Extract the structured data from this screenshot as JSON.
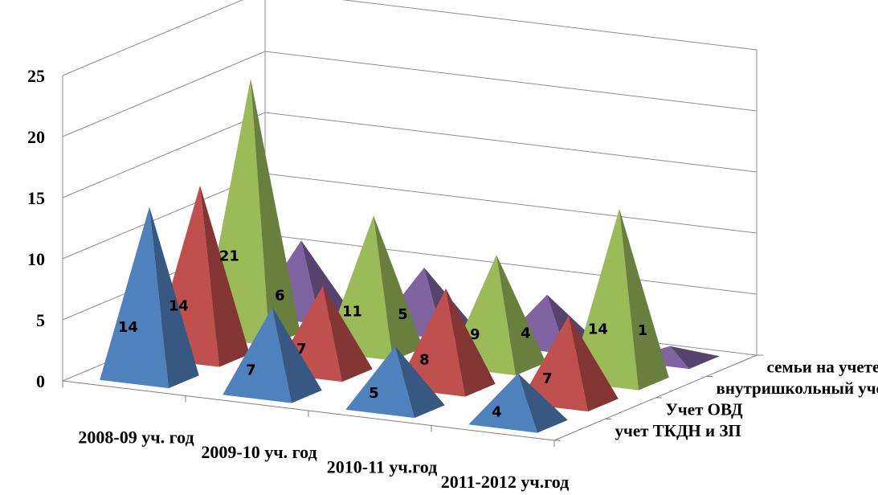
{
  "chart_data": {
    "type": "bar",
    "style": "3d-pyramid",
    "categories": [
      "2008-09 уч. год",
      "2009-10 уч. год",
      "2010-11 уч.год",
      "2011-2012 уч.год"
    ],
    "series": [
      {
        "name": "учет ТКДН и ЗП",
        "values": [
          14,
          7,
          5,
          4
        ],
        "color": "#4f81bd"
      },
      {
        "name": "Учет ОВД",
        "values": [
          14,
          7,
          8,
          7
        ],
        "color": "#c0504d"
      },
      {
        "name": "внутришкольный учет",
        "values": [
          21,
          11,
          9,
          14
        ],
        "color": "#9bbb59"
      },
      {
        "name": "семьи на учете",
        "values": [
          6,
          5,
          4,
          1
        ],
        "color": "#8064a2"
      }
    ],
    "y_ticks": [
      0,
      5,
      10,
      15,
      20,
      25
    ],
    "ylim": [
      0,
      25
    ],
    "grid": true
  }
}
